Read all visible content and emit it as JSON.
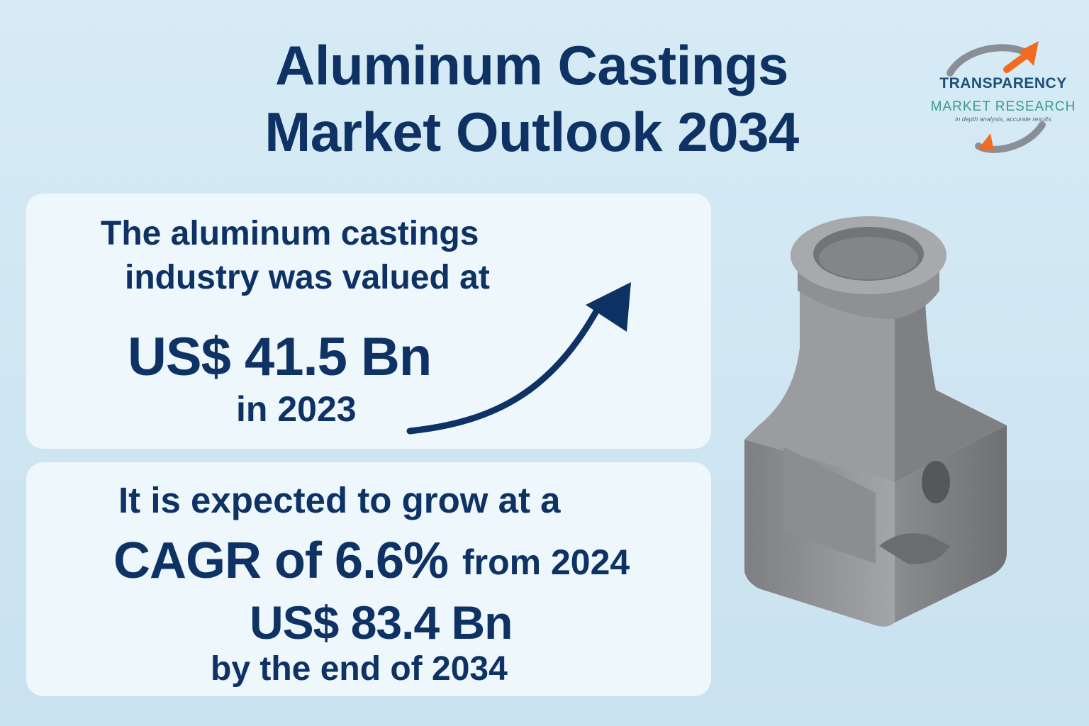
{
  "header": {
    "title_line1": "Aluminum Castings",
    "title_line2": "Market Outlook 2034"
  },
  "logo": {
    "line1": "TRANSPARENCY",
    "line2": "MARKET RESEARCH",
    "tagline": "in depth analysis, accurate results",
    "colors": {
      "arc": "#8a8f96",
      "arrow": "#f26b21"
    }
  },
  "card1": {
    "line1": "The aluminum castings",
    "line2": "industry was valued at",
    "value": "US$ 41.5 Bn",
    "year": "in 2023"
  },
  "card2": {
    "line1": "It is expected to grow at a",
    "cagr": "CAGR of 6.6%",
    "from": "from 2024",
    "value": "US$ 83.4 Bn",
    "end": "by the end of 2034"
  },
  "colors": {
    "text": "#0e3263",
    "background": "#d6ebf5",
    "card": "#f0f8fd",
    "metal": "#8f9194"
  },
  "icons": {
    "growth": "trend-arrow-icon",
    "part": "aluminum-casting-illustration"
  }
}
